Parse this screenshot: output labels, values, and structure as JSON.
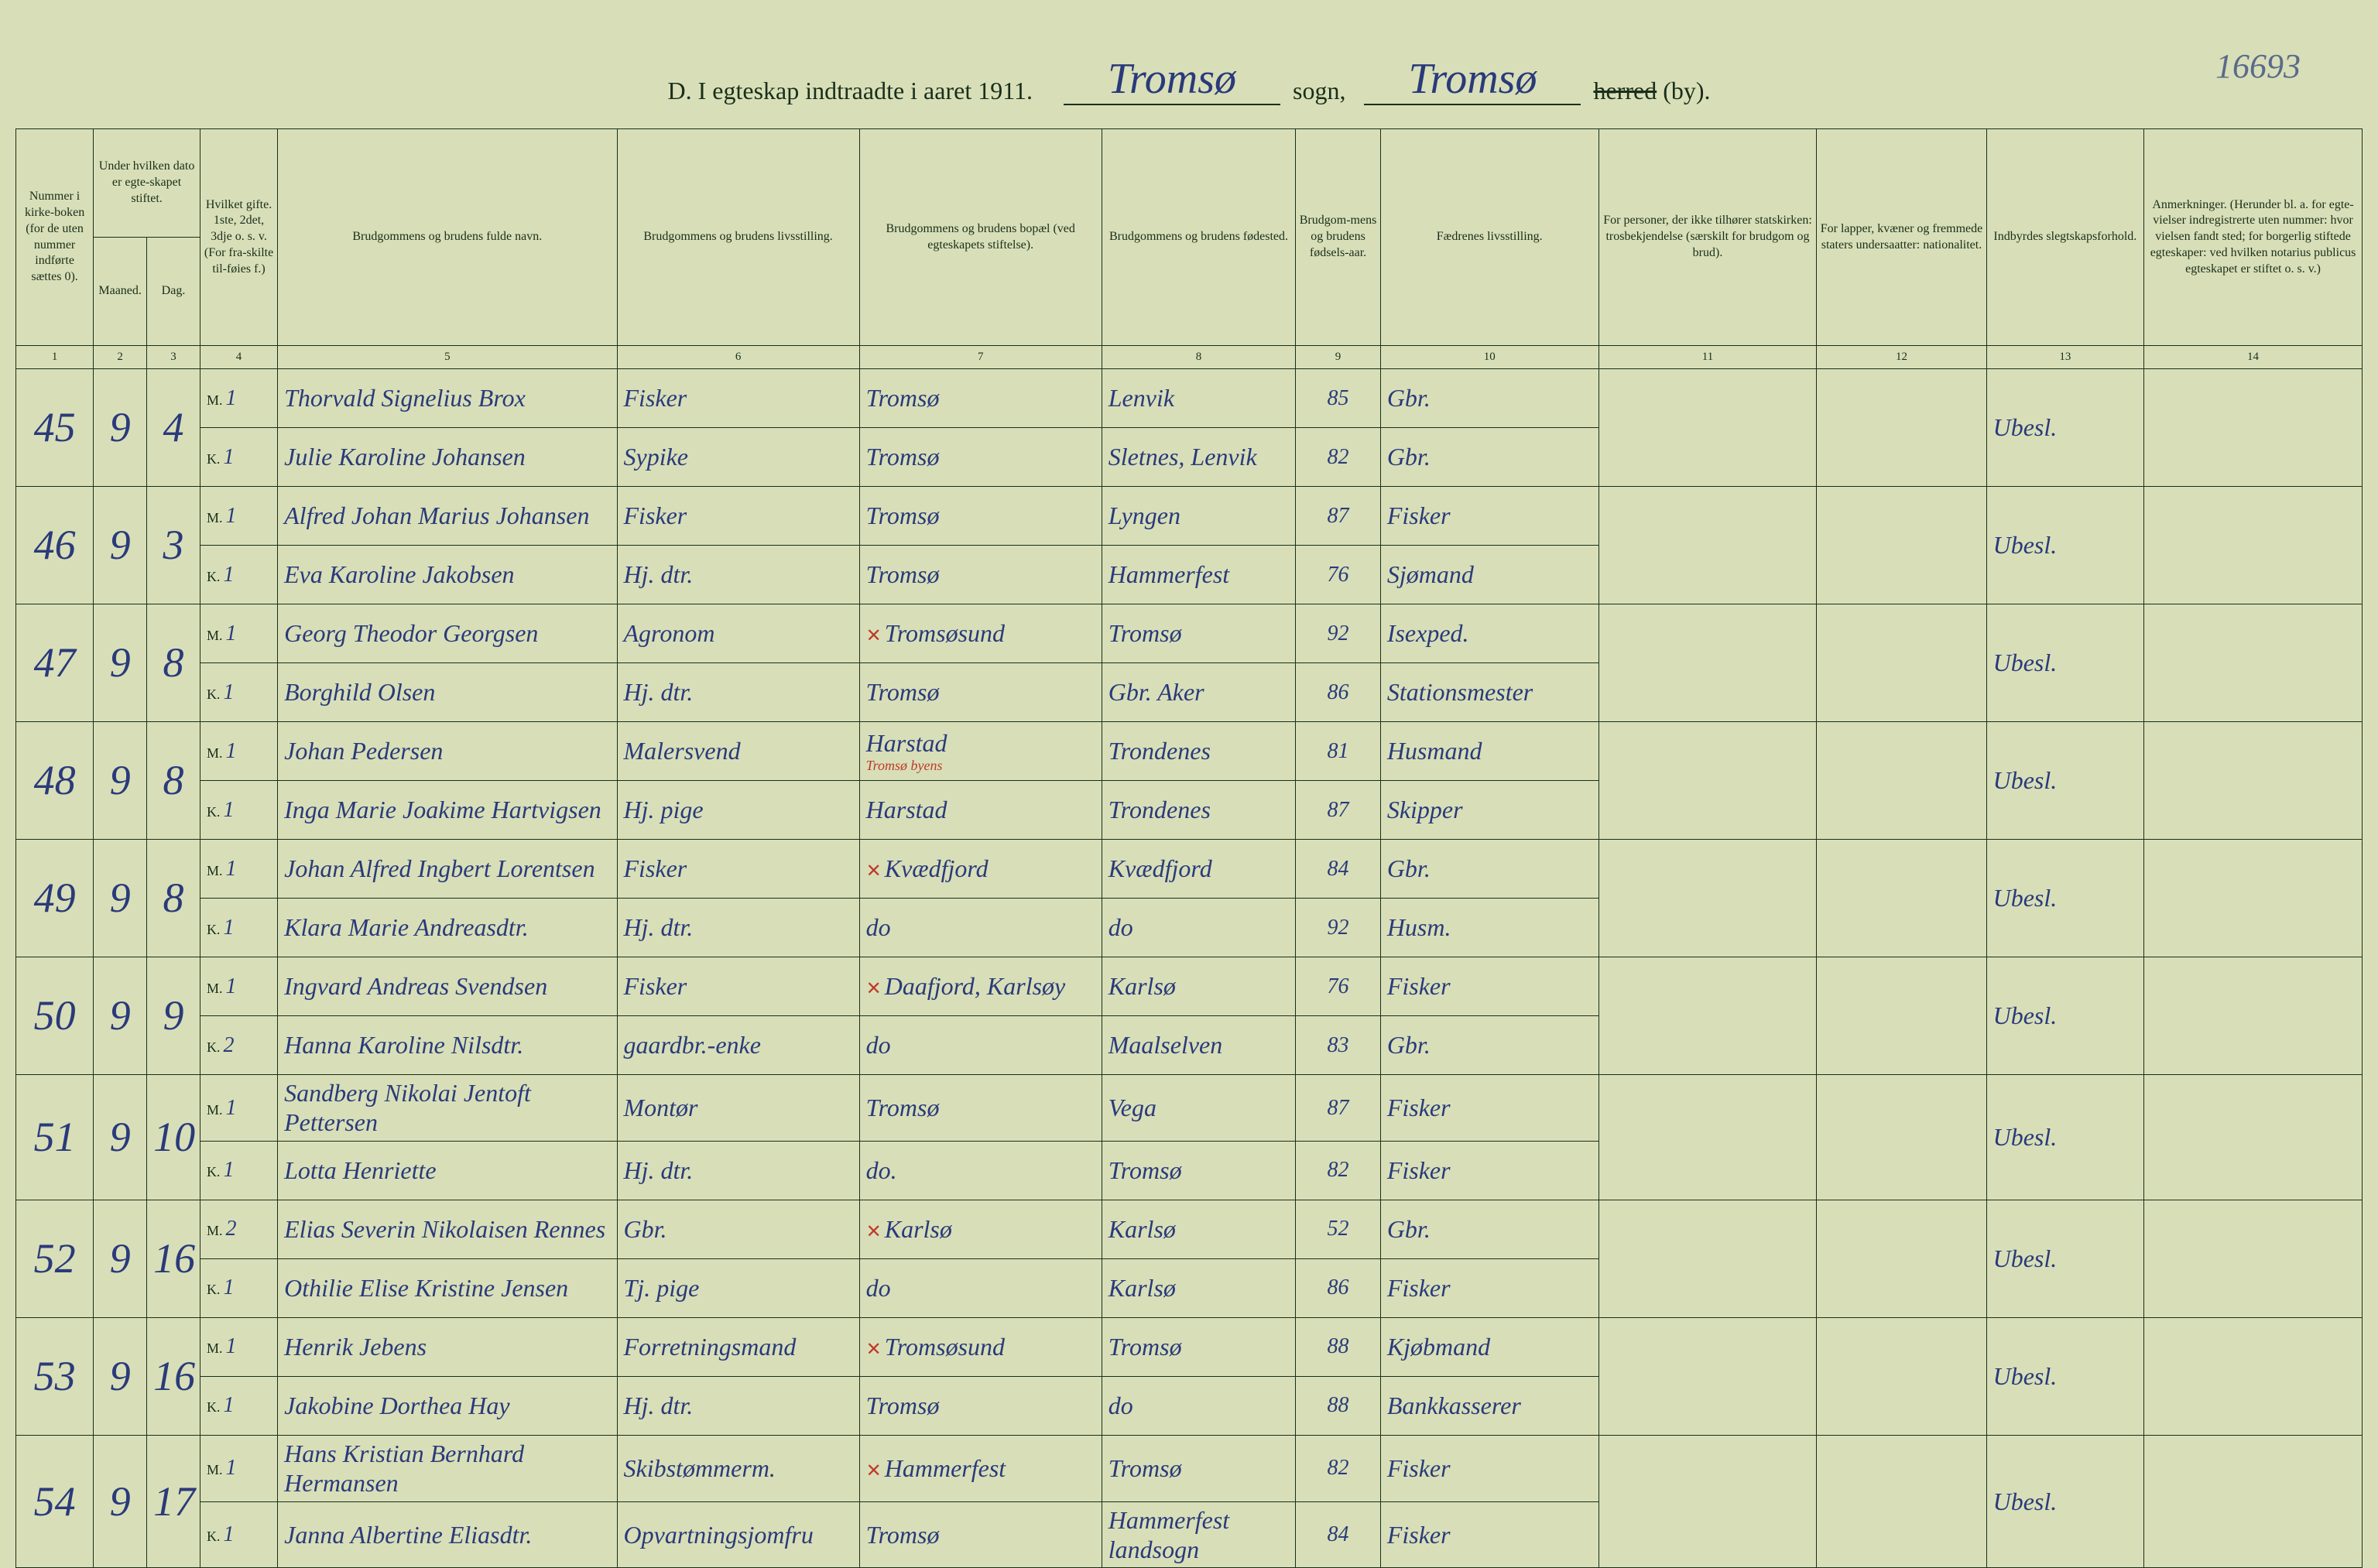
{
  "page_number": "16693",
  "title": {
    "prefix": "D.  I egteskap indtraadte i aaret 191",
    "year_suffix": "1",
    "sogn_word": "sogn,",
    "sogn_value": "Tromsø",
    "herred_strike": "herred",
    "by_suffix": "(by).",
    "herred_value": "Tromsø"
  },
  "headers": {
    "c1": "Nummer i kirke-boken (for de uten nummer indførte sættes 0).",
    "c2": "Under hvilken dato er egte-skapet stiftet.",
    "c2a": "Maaned.",
    "c2b": "Dag.",
    "c3": "Hvilket gifte. 1ste, 2det, 3dje o. s. v. (For fra-skilte til-føies f.)",
    "c4": "Brudgommens og brudens fulde navn.",
    "c5": "Brudgommens og brudens livsstilling.",
    "c6": "Brudgommens og brudens bopæl (ved egteskapets stiftelse).",
    "c7": "Brudgommens og brudens fødested.",
    "c8": "Brudgom-mens og brudens fødsels-aar.",
    "c9": "Fædrenes livsstilling.",
    "c10": "For personer, der ikke tilhører statskirken: trosbekjendelse (særskilt for brudgom og brud).",
    "c11": "For lapper, kvæner og fremmede staters undersaatter: nationalitet.",
    "c12": "Indbyrdes slegtskapsforhold.",
    "c13": "Anmerkninger. (Herunder bl. a. for egte-vielser indregistrerte uten nummer: hvor vielsen fandt sted; for borgerlig stiftede egteskaper: ved hvilken notarius publicus egteskapet er stiftet o. s. v.)"
  },
  "colnums": [
    "1",
    "2",
    "3",
    "4",
    "5",
    "6",
    "7",
    "8",
    "9",
    "10",
    "11",
    "12",
    "13",
    "14"
  ],
  "rows": [
    {
      "num": "45",
      "m": "9",
      "d": "4",
      "M": {
        "g": "1",
        "name": "Thorvald Signelius Brox",
        "occ": "Fisker",
        "res": "Tromsø",
        "birth": "Lenvik",
        "yr": "85",
        "father": "Gbr."
      },
      "K": {
        "g": "1",
        "name": "Julie Karoline Johansen",
        "occ": "Sypike",
        "res": "Tromsø",
        "birth": "Sletnes, Lenvik",
        "yr": "82",
        "father": "Gbr."
      },
      "rel": "Ubesl."
    },
    {
      "num": "46",
      "m": "9",
      "d": "3",
      "M": {
        "g": "1",
        "name": "Alfred Johan Marius Johansen",
        "occ": "Fisker",
        "res": "Tromsø",
        "birth": "Lyngen",
        "yr": "87",
        "father": "Fisker"
      },
      "K": {
        "g": "1",
        "name": "Eva Karoline Jakobsen",
        "occ": "Hj. dtr.",
        "res": "Tromsø",
        "birth": "Hammerfest",
        "yr": "76",
        "father": "Sjømand"
      },
      "rel": "Ubesl."
    },
    {
      "num": "47",
      "m": "9",
      "d": "8",
      "M": {
        "g": "1",
        "name": "Georg Theodor Georgsen",
        "occ": "Agronom",
        "res": "Tromsøsund",
        "res_red": true,
        "birth": "Tromsø",
        "yr": "92",
        "father": "Isexped."
      },
      "K": {
        "g": "1",
        "name": "Borghild Olsen",
        "occ": "Hj. dtr.",
        "res": "Tromsø",
        "birth": "Gbr. Aker",
        "yr": "86",
        "father": "Stationsmester"
      },
      "rel": "Ubesl."
    },
    {
      "num": "48",
      "m": "9",
      "d": "8",
      "M": {
        "g": "1",
        "name": "Johan Pedersen",
        "occ": "Malersvend",
        "res": "Harstad",
        "birth": "Trondenes",
        "yr": "81",
        "father": "Husmand"
      },
      "K": {
        "g": "1",
        "name": "Inga Marie Joakime Hartvigsen",
        "occ": "Hj. pige",
        "res": "Harstad",
        "birth": "Trondenes",
        "yr": "87",
        "father": "Skipper"
      },
      "rel": "Ubesl.",
      "rednote": "Tromsø byens"
    },
    {
      "num": "49",
      "m": "9",
      "d": "8",
      "M": {
        "g": "1",
        "name": "Johan Alfred Ingbert Lorentsen",
        "occ": "Fisker",
        "res": "Kvædfjord",
        "res_red": true,
        "birth": "Kvædfjord",
        "yr": "84",
        "father": "Gbr."
      },
      "K": {
        "g": "1",
        "name": "Klara Marie Andreasdtr.",
        "occ": "Hj. dtr.",
        "res": "do",
        "birth": "do",
        "yr": "92",
        "father": "Husm."
      },
      "rel": "Ubesl."
    },
    {
      "num": "50",
      "m": "9",
      "d": "9",
      "M": {
        "g": "1",
        "name": "Ingvard Andreas Svendsen",
        "occ": "Fisker",
        "res": "Daafjord, Karlsøy",
        "res_red": true,
        "birth": "Karlsø",
        "yr": "76",
        "father": "Fisker"
      },
      "K": {
        "g": "2",
        "name": "Hanna Karoline Nilsdtr.",
        "occ": "gaardbr.-enke",
        "res": "do",
        "birth": "Maalselven",
        "yr": "83",
        "father": "Gbr."
      },
      "rel": "Ubesl."
    },
    {
      "num": "51",
      "m": "9",
      "d": "10",
      "M": {
        "g": "1",
        "name": "Sandberg Nikolai Jentoft Pettersen",
        "occ": "Montør",
        "res": "Tromsø",
        "birth": "Vega",
        "yr": "87",
        "father": "Fisker"
      },
      "K": {
        "g": "1",
        "name": "Lotta Henriette",
        "occ": "Hj. dtr.",
        "res": "do.",
        "birth": "Tromsø",
        "yr": "82",
        "father": "Fisker"
      },
      "rel": "Ubesl."
    },
    {
      "num": "52",
      "m": "9",
      "d": "16",
      "M": {
        "g": "2",
        "name": "Elias Severin Nikolaisen Rennes",
        "occ": "Gbr.",
        "res": "Karlsø",
        "res_red": true,
        "birth": "Karlsø",
        "yr": "52",
        "father": "Gbr."
      },
      "K": {
        "g": "1",
        "name": "Othilie Elise Kristine Jensen",
        "occ": "Tj. pige",
        "res": "do",
        "birth": "Karlsø",
        "yr": "86",
        "father": "Fisker"
      },
      "rel": "Ubesl."
    },
    {
      "num": "53",
      "m": "9",
      "d": "16",
      "M": {
        "g": "1",
        "name": "Henrik Jebens",
        "occ": "Forretningsmand",
        "res": "Tromsøsund",
        "res_red": true,
        "birth": "Tromsø",
        "yr": "88",
        "father": "Kjøbmand"
      },
      "K": {
        "g": "1",
        "name": "Jakobine Dorthea Hay",
        "occ": "Hj. dtr.",
        "res": "Tromsø",
        "birth": "do",
        "yr": "88",
        "father": "Bankkasserer"
      },
      "rel": "Ubesl."
    },
    {
      "num": "54",
      "m": "9",
      "d": "17",
      "M": {
        "g": "1",
        "name": "Hans Kristian Bernhard Hermansen",
        "occ": "Skibstømmerm.",
        "res": "Hammerfest",
        "res_red": true,
        "birth": "Tromsø",
        "yr": "82",
        "father": "Fisker"
      },
      "K": {
        "g": "1",
        "name": "Janna Albertine Eliasdtr.",
        "occ": "Opvartningsjomfru",
        "res": "Tromsø",
        "birth": "Hammerfest landsogn",
        "yr": "84",
        "father": "Fisker"
      },
      "rel": "Ubesl."
    }
  ],
  "colors": {
    "background": "#d8dfb8",
    "ink_print": "#1a2e1a",
    "ink_hand": "#2a3a7a",
    "ink_red": "#c0392b"
  }
}
